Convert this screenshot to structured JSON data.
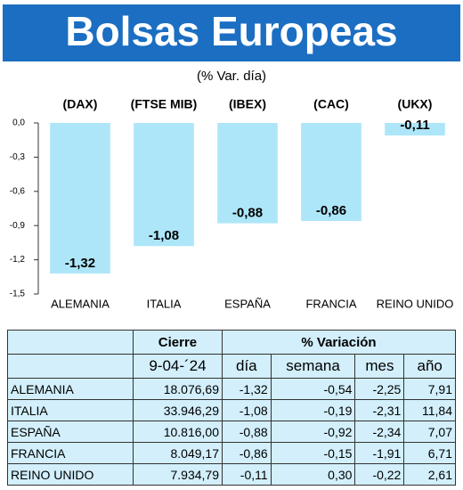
{
  "chart_data": {
    "type": "bar",
    "title": "Bolsas Europeas",
    "subtitle": "(% Var. día)",
    "categories": [
      "ALEMANIA",
      "ITALIA",
      "ESPAÑA",
      "FRANCIA",
      "REINO UNIDO"
    ],
    "indices": [
      "(DAX)",
      "(FTSE MIB)",
      "(IBEX)",
      "(CAC)",
      "(UKX)"
    ],
    "values": [
      -1.32,
      -1.08,
      -0.88,
      -0.86,
      -0.11
    ],
    "value_labels": [
      "-1,32",
      "-1,08",
      "-0,88",
      "-0,86",
      "-0,11"
    ],
    "color": "#aee6f9",
    "ylim": [
      -1.5,
      0
    ],
    "yticks": [
      {
        "value": 0,
        "label": "0,0"
      },
      {
        "value": -0.3,
        "label": "-0,3"
      },
      {
        "value": -0.6,
        "label": "-0,6"
      },
      {
        "value": -0.9,
        "label": "-0,9"
      },
      {
        "value": -1.2,
        "label": "-1,2"
      },
      {
        "value": -1.5,
        "label": "-1,5"
      }
    ]
  },
  "table": {
    "header": [
      "Cierre",
      "% Variación"
    ],
    "subheader": [
      "9-04-´24",
      "día",
      "semana",
      "mes",
      "año"
    ],
    "rows": [
      [
        "ALEMANIA",
        "18.076,69",
        "-1,32",
        "-0,54",
        "-2,25",
        "7,91"
      ],
      [
        "ITALIA",
        "33.946,29",
        "-1,08",
        "-0,19",
        "-2,31",
        "11,84"
      ],
      [
        "ESPAÑA",
        "10.816,00",
        "-0,88",
        "-0,92",
        "-2,34",
        "7,07"
      ],
      [
        "FRANCIA",
        "8.049,17",
        "-0,86",
        "-0,15",
        "-1,91",
        "6,71"
      ],
      [
        "REINO UNIDO",
        "7.934,79",
        "-0,11",
        "0,30",
        "-0,22",
        "2,61"
      ]
    ]
  }
}
